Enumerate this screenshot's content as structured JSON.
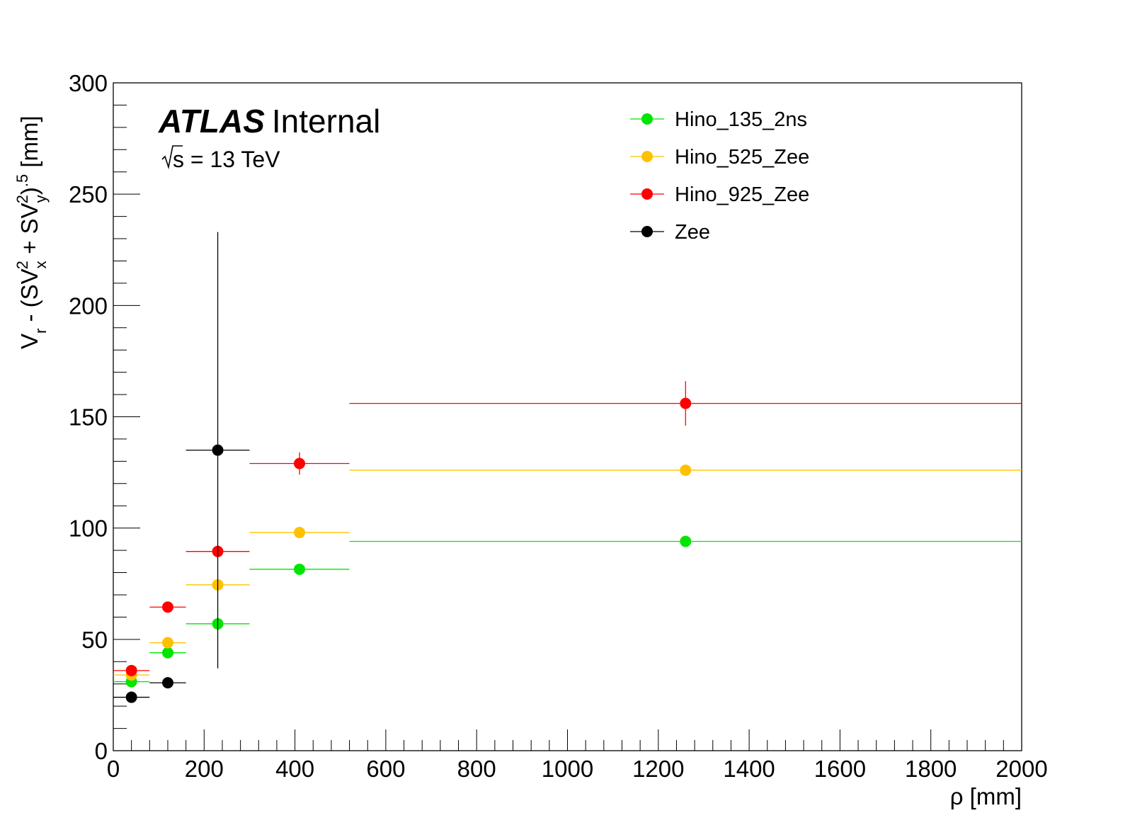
{
  "experiment": {
    "name": "ATLAS",
    "status": "Internal",
    "energy_prefix": "s",
    "energy_text": " = 13 TeV"
  },
  "axes": {
    "xlabel": "ρ [mm]",
    "ylabel_parts": [
      "V",
      "r",
      " - (SV",
      "x",
      "2",
      " + SV",
      "y",
      "2",
      ")",
      ".5",
      " [mm]"
    ]
  },
  "chart_data": {
    "type": "scatter",
    "title": "",
    "xlabel": "ρ [mm]",
    "ylabel": "V_r - (SV_x^2 + SV_y^2)^.5 [mm]",
    "xlim": [
      0,
      2000
    ],
    "ylim": [
      0,
      300
    ],
    "x_ticks": [
      0,
      200,
      400,
      600,
      800,
      1000,
      1200,
      1400,
      1600,
      1800,
      2000
    ],
    "y_ticks": [
      0,
      50,
      100,
      150,
      200,
      250,
      300
    ],
    "grid": false,
    "legend_position": "top-right",
    "series": [
      {
        "name": "Hino_135_2ns",
        "color": "#00e600",
        "points": [
          {
            "x": 40,
            "xerr": [
              0,
              80
            ],
            "y": 31,
            "yerr": 0.5
          },
          {
            "x": 120,
            "xerr": [
              80,
              160
            ],
            "y": 44,
            "yerr": 1
          },
          {
            "x": 230,
            "xerr": [
              160,
              300
            ],
            "y": 57,
            "yerr": 1
          },
          {
            "x": 410,
            "xerr": [
              300,
              520
            ],
            "y": 81.5,
            "yerr": 1
          },
          {
            "x": 1260,
            "xerr": [
              520,
              2000
            ],
            "y": 94,
            "yerr": 1
          }
        ]
      },
      {
        "name": "Hino_525_Zee",
        "color": "#ffc000",
        "points": [
          {
            "x": 40,
            "xerr": [
              0,
              80
            ],
            "y": 34,
            "yerr": 0.5
          },
          {
            "x": 120,
            "xerr": [
              80,
              160
            ],
            "y": 48.5,
            "yerr": 1
          },
          {
            "x": 230,
            "xerr": [
              160,
              300
            ],
            "y": 74.5,
            "yerr": 1
          },
          {
            "x": 410,
            "xerr": [
              300,
              520
            ],
            "y": 98,
            "yerr": 1
          },
          {
            "x": 1260,
            "xerr": [
              520,
              2000
            ],
            "y": 126,
            "yerr": 1
          }
        ]
      },
      {
        "name": "Hino_925_Zee",
        "color": "#ff0000",
        "points": [
          {
            "x": 40,
            "xerr": [
              0,
              80
            ],
            "y": 36,
            "yerr": 0.5
          },
          {
            "x": 120,
            "xerr": [
              80,
              160
            ],
            "y": 64.5,
            "yerr": 1
          },
          {
            "x": 230,
            "xerr": [
              160,
              300
            ],
            "y": 89.5,
            "yerr": 1
          },
          {
            "x": 410,
            "xerr": [
              300,
              520
            ],
            "y": 129,
            "yerr": 5
          },
          {
            "x": 1260,
            "xerr": [
              520,
              2000
            ],
            "y": 156,
            "yerr": 10
          }
        ]
      },
      {
        "name": "Zee",
        "color": "#000000",
        "points": [
          {
            "x": 40,
            "xerr": [
              0,
              80
            ],
            "y": 24,
            "yerr": 0.5
          },
          {
            "x": 120,
            "xerr": [
              80,
              160
            ],
            "y": 30.5,
            "yerr": 0.5
          },
          {
            "x": 230,
            "xerr": [
              160,
              300
            ],
            "y": 135,
            "yerr": 98
          }
        ]
      }
    ]
  }
}
